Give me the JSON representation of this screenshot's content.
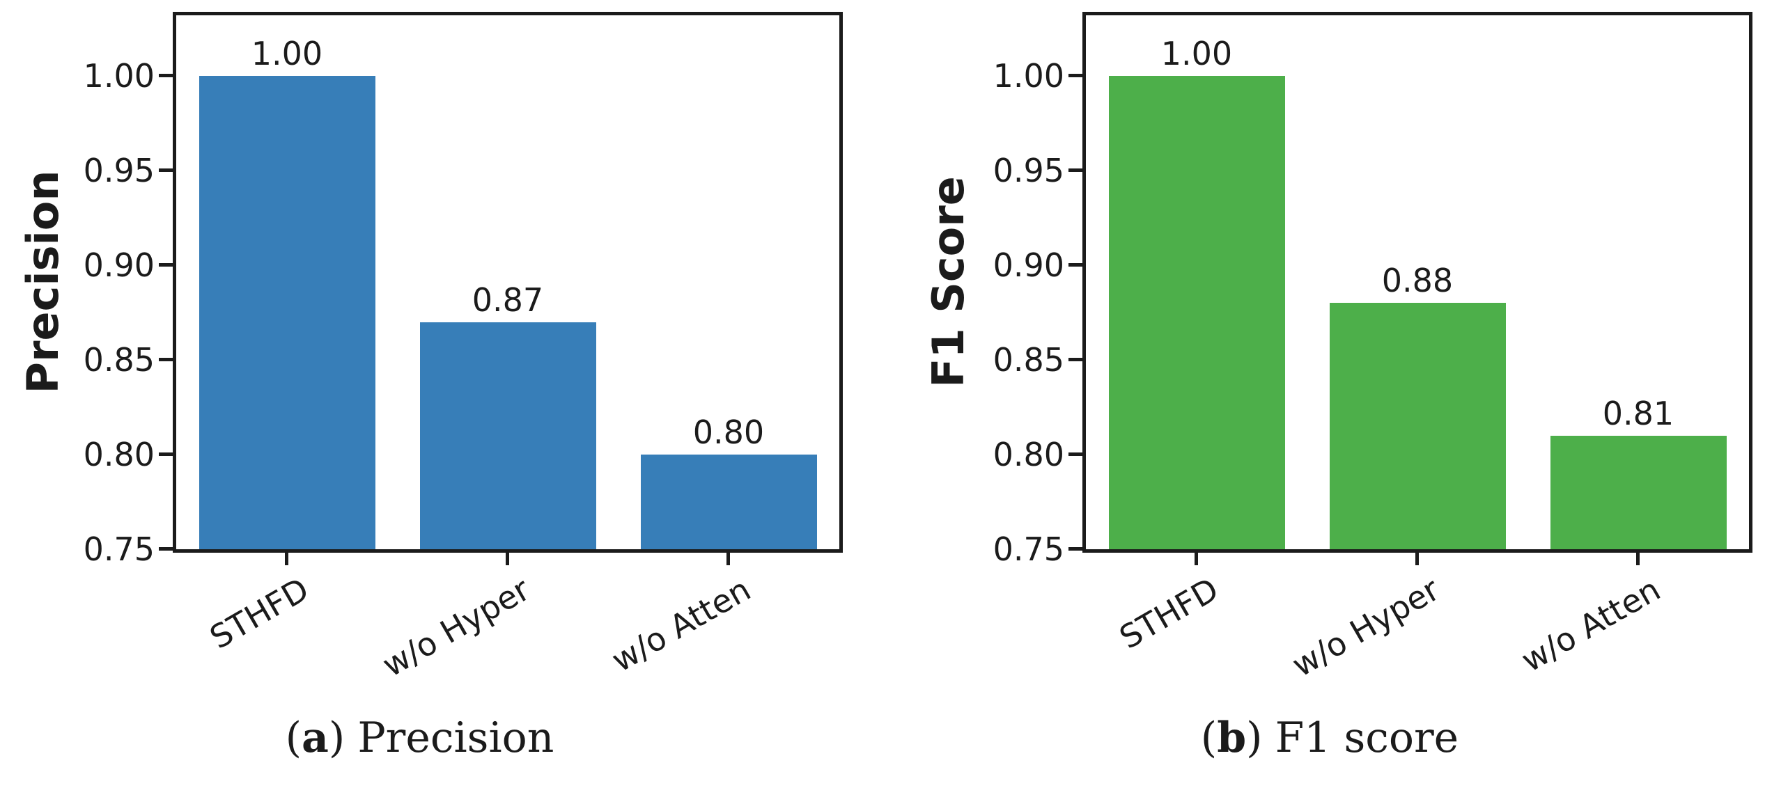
{
  "figure": {
    "background": "#ffffff",
    "text_color": "#1b1b1b"
  },
  "captions": {
    "a": {
      "pre": "(",
      "letter": "a",
      "post": ")",
      "text": "Precision"
    },
    "b": {
      "pre": "(",
      "letter": "b",
      "post": ")",
      "text": "F1 score"
    }
  },
  "chart_data": [
    {
      "id": "precision-bar-chart",
      "type": "bar",
      "title": "",
      "ylabel": "Precision",
      "xlabel": "",
      "categories": [
        "STHFD",
        "w/o Hyper",
        "w/o Atten"
      ],
      "values": [
        1.0,
        0.87,
        0.8
      ],
      "value_labels": [
        "1.00",
        "0.87",
        "0.80"
      ],
      "bar_color": "#377eb8",
      "ylim": [
        0.75,
        1.032
      ],
      "yticks": [
        1.0,
        0.95,
        0.9,
        0.85,
        0.8,
        0.75
      ],
      "ytick_labels": [
        "1.00",
        "0.95",
        "0.90",
        "0.85",
        "0.80",
        "0.75"
      ],
      "xtick_rotation_deg": 30,
      "grid": false,
      "legend": null,
      "caption": "(a) Precision"
    },
    {
      "id": "f1-score-bar-chart",
      "type": "bar",
      "title": "",
      "ylabel": "F1 Score",
      "xlabel": "",
      "categories": [
        "STHFD",
        "w/o Hyper",
        "w/o Atten"
      ],
      "values": [
        1.0,
        0.88,
        0.81
      ],
      "value_labels": [
        "1.00",
        "0.88",
        "0.81"
      ],
      "bar_color": "#4daf4a",
      "ylim": [
        0.75,
        1.032
      ],
      "yticks": [
        1.0,
        0.95,
        0.9,
        0.85,
        0.8,
        0.75
      ],
      "ytick_labels": [
        "1.00",
        "0.95",
        "0.90",
        "0.85",
        "0.80",
        "0.75"
      ],
      "xtick_rotation_deg": 30,
      "grid": false,
      "legend": null,
      "caption": "(b) F1 score"
    }
  ]
}
